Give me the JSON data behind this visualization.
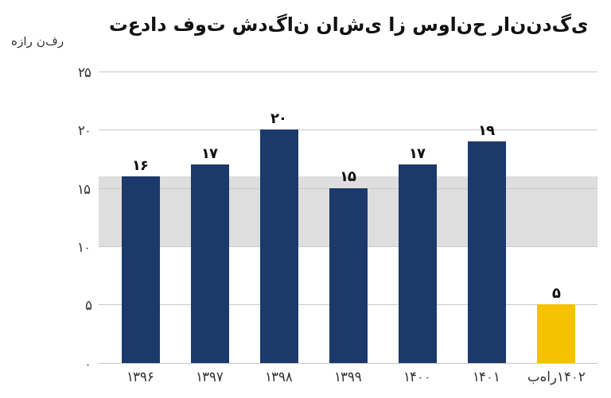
{
  "title": "تعداد فوت شدگان ناشی از سوانح رانندگی",
  "ylabel": "هزار نفر",
  "categories": [
    "۱۳۹۶",
    "۱۳۹۷",
    "۱۳۹۸",
    "۱۳۹۹",
    "۱۴۰۰",
    "۱۴۰۱",
    "بهار۱۴۰۲"
  ],
  "values": [
    16,
    17,
    20,
    15,
    17,
    19,
    5
  ],
  "bar_colors": [
    "#1b3a6b",
    "#1b3a6b",
    "#1b3a6b",
    "#1b3a6b",
    "#1b3a6b",
    "#1b3a6b",
    "#f5c200"
  ],
  "bar_labels": [
    "۱۶",
    "۱۷",
    "۲۰",
    "۱۵",
    "۱۷",
    "۱۹",
    "۵"
  ],
  "yticks": [
    0,
    5,
    10,
    15,
    20,
    25
  ],
  "ytick_labels": [
    "۰",
    "۵",
    "۱۰",
    "۱۵",
    "۲۰",
    "۲۵"
  ],
  "ylim": [
    0,
    27
  ],
  "background_color": "#ffffff",
  "shaded_band": [
    10,
    16
  ],
  "shaded_color": "#dedede",
  "title_fontsize": 17,
  "bar_label_fontsize": 13,
  "tick_fontsize": 12,
  "ylabel_fontsize": 11
}
